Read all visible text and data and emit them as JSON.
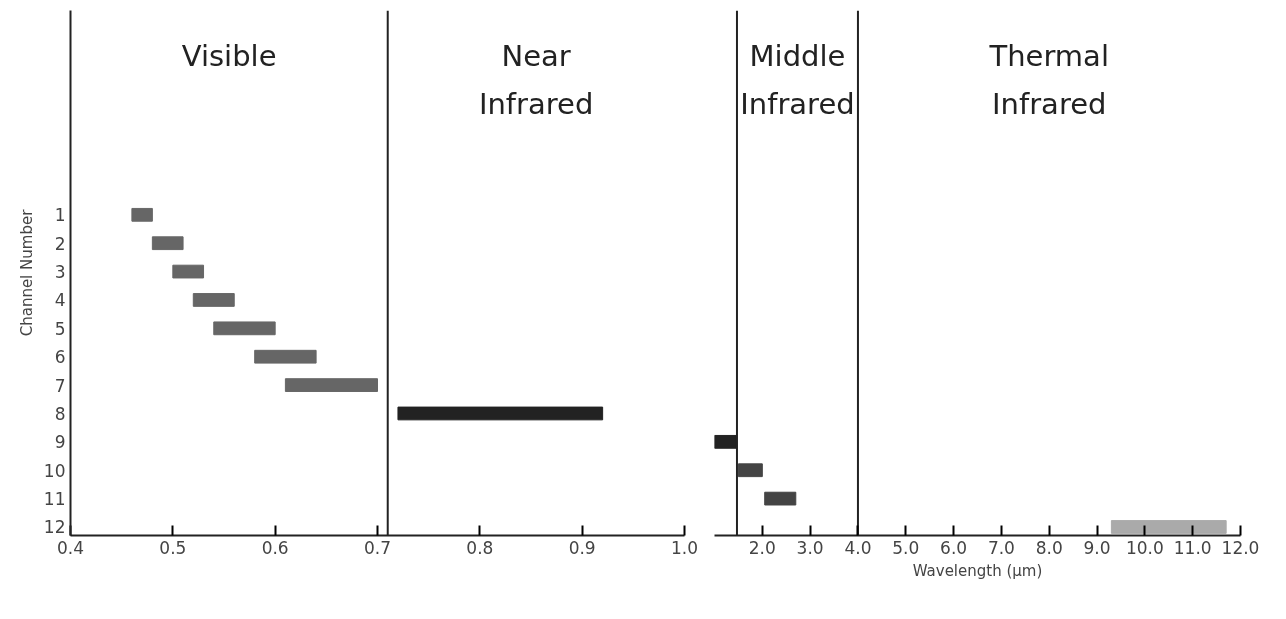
{
  "chart_data": [
    {
      "type": "bar",
      "orientation": "horizontal",
      "ylabel": "Channel Number",
      "categories": [
        "1",
        "2",
        "3",
        "4",
        "5",
        "6",
        "7",
        "8",
        "9",
        "10",
        "11",
        "12"
      ],
      "base": [
        0.46,
        0.48,
        0.5,
        0.52,
        0.54,
        0.58,
        0.61,
        0.72,
        null,
        null,
        null,
        null
      ],
      "values": [
        0.02,
        0.03,
        0.03,
        0.04,
        0.06,
        0.06,
        0.09,
        0.2,
        null,
        null,
        null,
        null
      ],
      "colors": [
        "#666666",
        "#666666",
        "#666666",
        "#666666",
        "#666666",
        "#666666",
        "#666666",
        "#222222",
        null,
        null,
        null,
        null
      ],
      "xlim": [
        0.4,
        1.0
      ],
      "xticks": [
        0.4,
        0.5,
        0.6,
        0.7,
        0.8,
        0.9,
        {
          "value": 1,
          "label": "1.0"
        }
      ],
      "ref_lines": [
        {
          "axis": "x",
          "value": 0.71,
          "color": "#222222"
        }
      ],
      "annotations": [
        "Visible",
        "Near Infrared"
      ],
      "grid": false
    },
    {
      "type": "bar",
      "orientation": "horizontal",
      "xlabel": "Wavelength (μm)",
      "categories": [
        "1",
        "2",
        "3",
        "4",
        "5",
        "6",
        "7",
        "8",
        "9",
        "10",
        "11",
        "12"
      ],
      "base": [
        null,
        null,
        null,
        null,
        null,
        null,
        null,
        null,
        1.0,
        1.5,
        2.05,
        9.3
      ],
      "values": [
        null,
        null,
        null,
        null,
        null,
        null,
        null,
        null,
        0.45,
        0.5,
        0.65,
        2.4
      ],
      "colors": [
        null,
        null,
        null,
        null,
        null,
        null,
        null,
        null,
        "#222222",
        "#444444",
        "#444444",
        "#aaaaaa"
      ],
      "xlim": [
        1.0,
        12.0
      ],
      "xticks": [
        {
          "value": 2,
          "label": "2.0"
        },
        {
          "value": 3,
          "label": "3.0"
        },
        {
          "value": 4,
          "label": "4.0"
        },
        {
          "value": 5,
          "label": "5.0"
        },
        {
          "value": 6,
          "label": "6.0"
        },
        {
          "value": 7,
          "label": "7.0"
        },
        {
          "value": 8,
          "label": "8.0"
        },
        {
          "value": 9,
          "label": "9.0"
        },
        {
          "value": 10,
          "label": "10.0"
        },
        {
          "value": 11,
          "label": "11.0"
        },
        {
          "value": 12,
          "label": "12.0"
        }
      ],
      "ref_lines": [
        {
          "axis": "x",
          "value": 1.47,
          "color": "#222222"
        },
        {
          "axis": "x",
          "value": 4.0,
          "color": "#222222"
        }
      ],
      "annotations": [
        "Middle Infrared",
        "Thermal Infrared"
      ],
      "tick_labels": "x",
      "grid": false
    }
  ]
}
